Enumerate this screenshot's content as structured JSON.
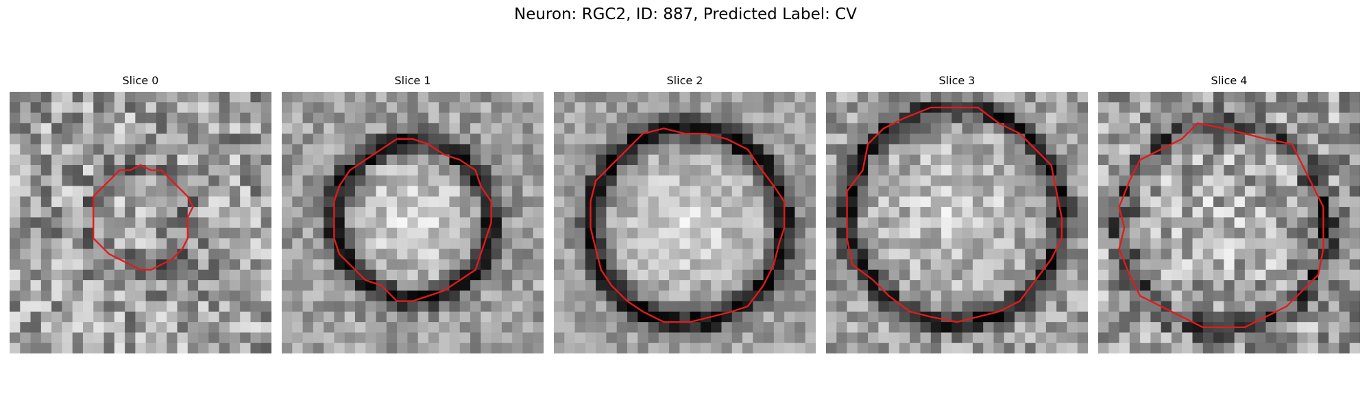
{
  "figure": {
    "title": "Neuron: RGC2, ID: 887, Predicted Label: CV"
  },
  "slices": [
    {
      "label": "Slice 0",
      "contour_color": "#e31a1c",
      "seed": 11,
      "cell_radius": 0.19,
      "membrane_darkness": 0.15,
      "interior_brightness": 0.05,
      "noise_level": 0.55
    },
    {
      "label": "Slice 1",
      "contour_color": "#e31a1c",
      "seed": 23,
      "cell_radius": 0.3,
      "membrane_darkness": 0.55,
      "interior_brightness": 0.45,
      "noise_level": 0.35
    },
    {
      "label": "Slice 2",
      "contour_color": "#e31a1c",
      "seed": 37,
      "cell_radius": 0.37,
      "membrane_darkness": 0.6,
      "interior_brightness": 0.4,
      "noise_level": 0.3
    },
    {
      "label": "Slice 3",
      "contour_color": "#e31a1c",
      "seed": 41,
      "cell_radius": 0.41,
      "membrane_darkness": 0.5,
      "interior_brightness": 0.3,
      "noise_level": 0.4
    },
    {
      "label": "Slice 4",
      "contour_color": "#e31a1c",
      "seed": 53,
      "cell_radius": 0.39,
      "membrane_darkness": 0.35,
      "interior_brightness": 0.15,
      "noise_level": 0.55
    }
  ]
}
